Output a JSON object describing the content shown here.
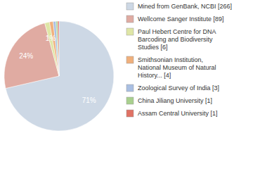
{
  "chart_data": {
    "type": "pie",
    "categories": [
      "Mined from GenBank, NCBI [266]",
      "Wellcome Sanger Institute [89]",
      "Paul Hebert Centre for DNA Barcoding and Biodiversity Studies [6]",
      "Smithsonian Institution, National Museum of Natural History... [4]",
      "Zoological Survey of India [3]",
      "China Jiliang University [1]",
      "Assam Central University [1]"
    ],
    "values": [
      71.4,
      24.4,
      1.4,
      1.1,
      0.8,
      0.5,
      0.4
    ],
    "value_labels": [
      "71%",
      "24%",
      "1%",
      null,
      null,
      null,
      null
    ],
    "colors": [
      "#cdd8e5",
      "#e0aba2",
      "#dfe6a6",
      "#f0b07c",
      "#a9bfe2",
      "#a9d08e",
      "#e07264"
    ],
    "data_labels": true,
    "legend": "right"
  }
}
